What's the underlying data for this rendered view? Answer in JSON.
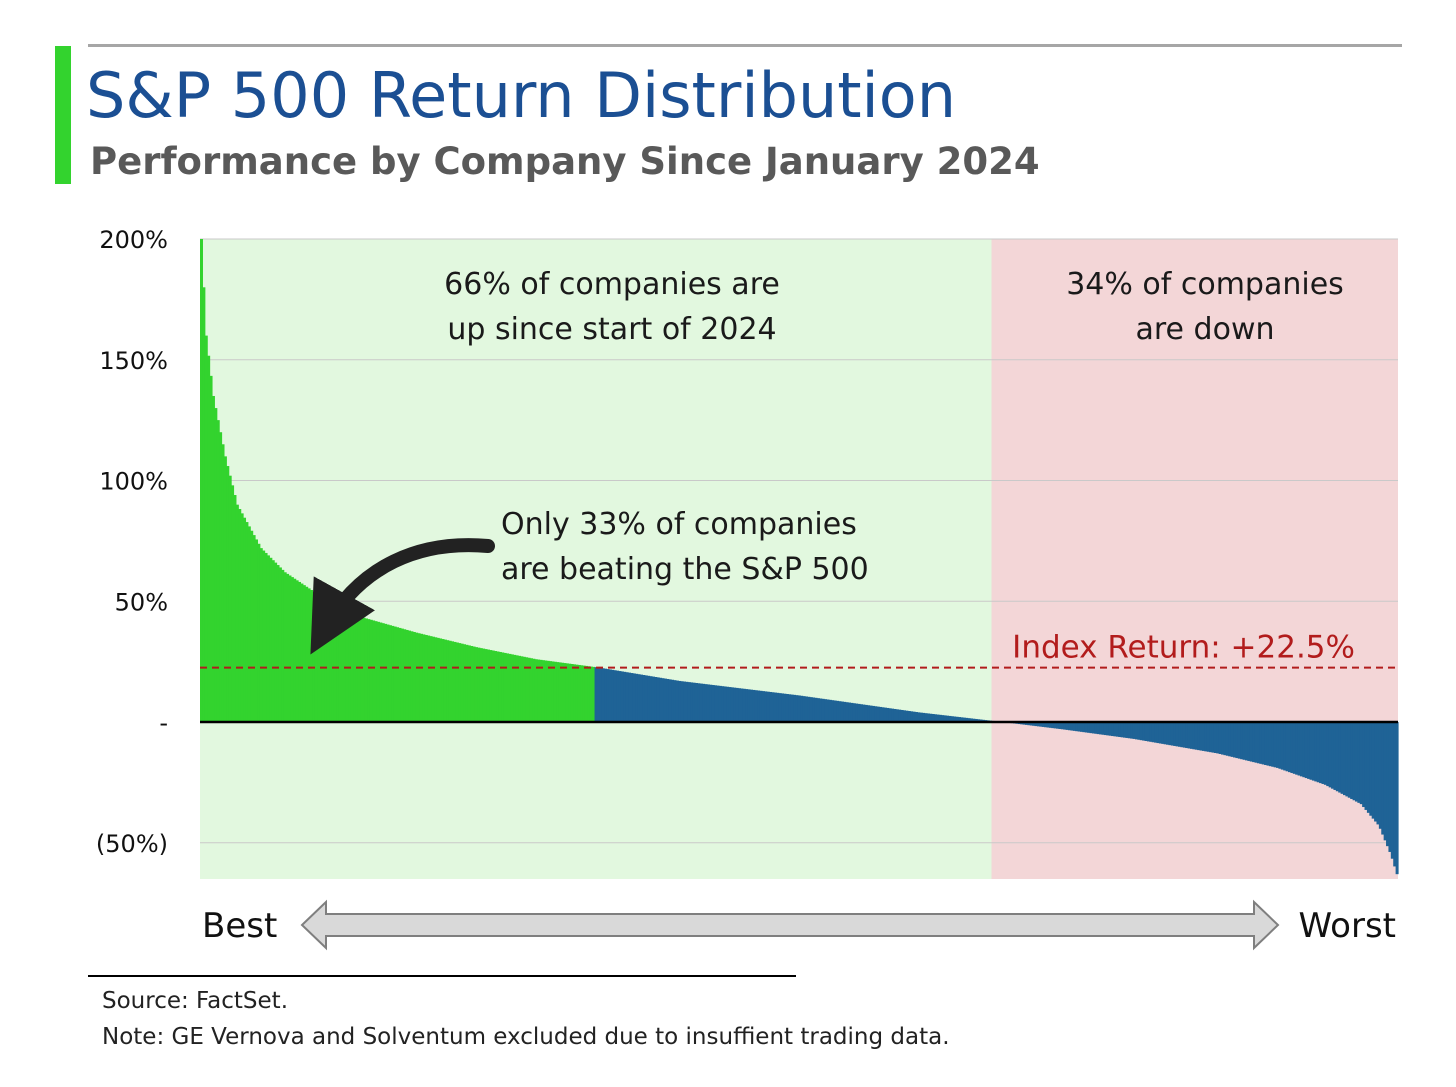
{
  "header": {
    "title": "S&P 500 Return Distribution",
    "subtitle": "Performance by Company Since January 2024"
  },
  "colors": {
    "accent_green": "#33d32e",
    "title_blue": "#1b4f93",
    "bar_blue": "#1f6396",
    "up_region": "#e2f8df",
    "down_region": "#f3d6d7",
    "index_line": "#b21c1c"
  },
  "chart_data": {
    "type": "bar",
    "title": "S&P 500 Return Distribution",
    "subtitle": "Performance by Company Since January 2024",
    "y_unit": "%",
    "ylim": [
      -65,
      200
    ],
    "y_ticks": [
      {
        "value": 200,
        "label": "200%"
      },
      {
        "value": 150,
        "label": "150%"
      },
      {
        "value": 100,
        "label": "100%"
      },
      {
        "value": 50,
        "label": "50%"
      },
      {
        "value": 0,
        "label": "-"
      },
      {
        "value": -50,
        "label": "(50%)"
      }
    ],
    "grid": true,
    "company_count": 501,
    "sorted": "descending",
    "x_axis": {
      "left_label": "Best",
      "right_label": "Worst"
    },
    "index_return": {
      "value": 22.5,
      "label": "Index Return: +22.5%"
    },
    "share_up": 0.66,
    "share_down": 0.34,
    "share_beating_index": 0.33,
    "returns_profile": {
      "description": "sorted company returns at selected fractions of the ranking (0 = best, 1 = worst)",
      "rank_fraction": [
        0,
        0.004,
        0.01,
        0.02,
        0.03,
        0.05,
        0.07,
        0.1,
        0.13,
        0.18,
        0.23,
        0.28,
        0.333,
        0.4,
        0.5,
        0.6,
        0.67,
        0.72,
        0.78,
        0.85,
        0.9,
        0.94,
        0.97,
        0.985,
        0.995,
        1
      ],
      "return_pct": [
        200,
        160,
        135,
        110,
        90,
        72,
        62,
        52,
        44,
        37,
        31,
        26,
        22.5,
        17,
        11,
        4,
        0,
        -3,
        -7,
        -13,
        -19,
        -26,
        -34,
        -43,
        -55,
        -63
      ]
    },
    "annotations": [
      {
        "text": [
          "66% of companies are",
          "up since start of 2024"
        ],
        "region": "up"
      },
      {
        "text": [
          "34% of companies",
          "are down"
        ],
        "region": "down"
      },
      {
        "text": [
          "Only 33% of companies",
          "are beating the S&P 500"
        ],
        "arrow": true
      }
    ]
  },
  "footer": {
    "source": "Source: FactSet.",
    "note": "Note: GE Vernova and Solventum excluded due to insuffient trading data."
  }
}
